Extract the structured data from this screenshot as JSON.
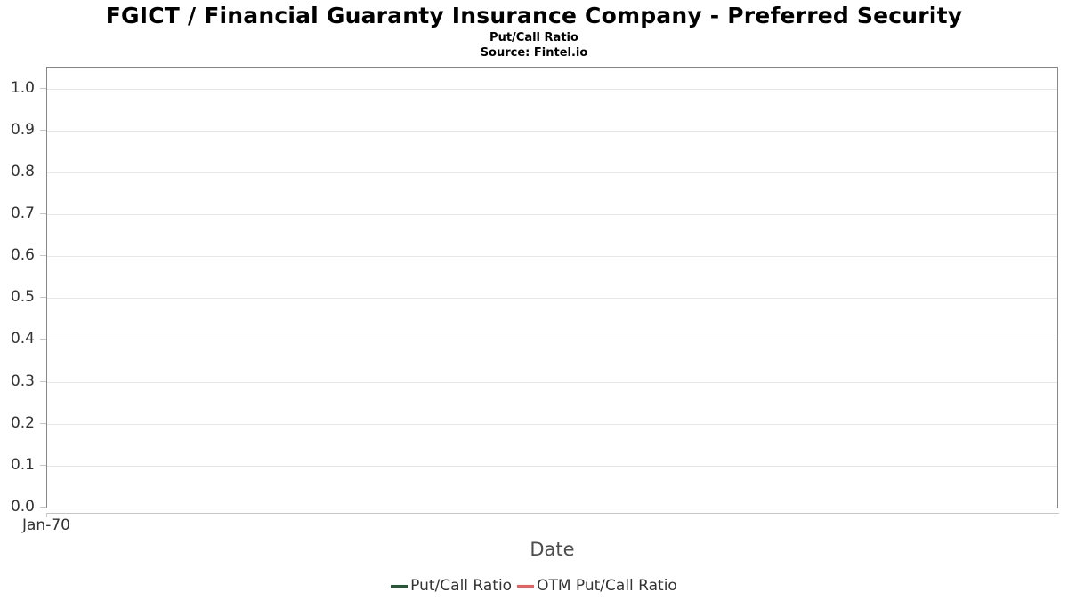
{
  "chart_data": {
    "type": "line",
    "title": "FGICT / Financial Guaranty Insurance Company - Preferred Security",
    "subtitle": "Put/Call Ratio",
    "source": "Source: Fintel.io",
    "xlabel": "Date",
    "ylabel": "",
    "xticks": [
      "Jan-70"
    ],
    "yticks": [
      0.0,
      0.1,
      0.2,
      0.3,
      0.4,
      0.5,
      0.6,
      0.7,
      0.8,
      0.9,
      1.0
    ],
    "ytick_labels": [
      "0.0",
      "0.1",
      "0.2",
      "0.3",
      "0.4",
      "0.5",
      "0.6",
      "0.7",
      "0.8",
      "0.9",
      "1.0"
    ],
    "ylim": [
      0,
      1.05
    ],
    "grid": "horizontal",
    "legend_position": "bottom",
    "plot_border_color": "#888888",
    "gridline_color": "#e7e7e7",
    "series": [
      {
        "name": "Put/Call Ratio",
        "color": "#235c34",
        "values": []
      },
      {
        "name": "OTM Put/Call Ratio",
        "color": "#f45b5b",
        "values": []
      }
    ]
  }
}
